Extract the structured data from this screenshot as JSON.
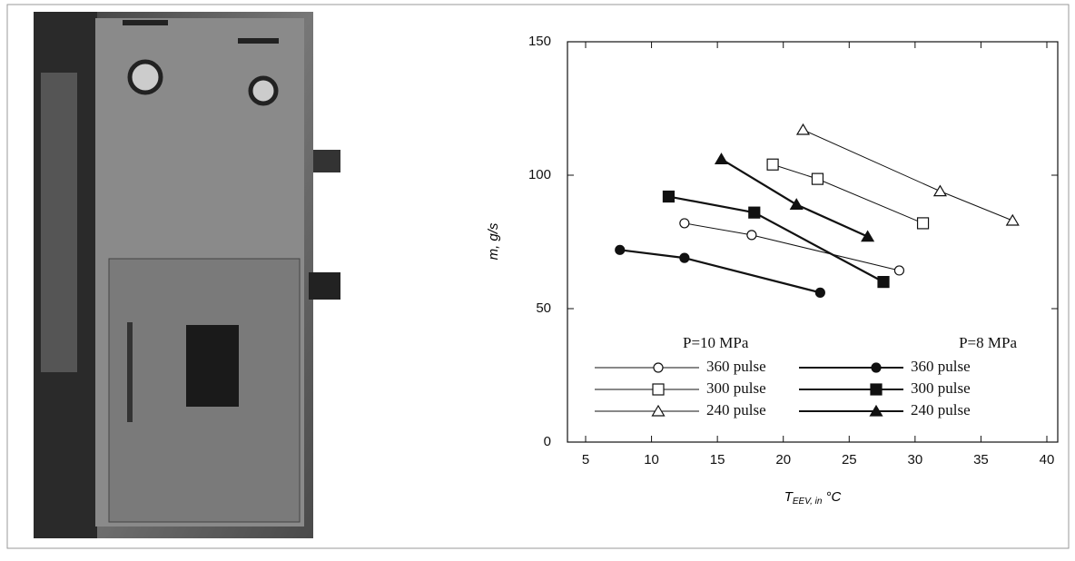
{
  "chart_data": {
    "type": "line",
    "xlabel": "T",
    "xlabel_sub": "EEV, in",
    "xlabel_unit": "°C",
    "ylabel": "m, g/s",
    "xlim": [
      5,
      40
    ],
    "xticks": [
      5,
      10,
      15,
      20,
      25,
      30,
      35,
      40
    ],
    "ylim": [
      0,
      150
    ],
    "yticks": [
      0,
      50,
      100,
      150
    ],
    "legend_titles": [
      "P=10 MPa",
      "P=8 MPa"
    ],
    "series": [
      {
        "name": "360 pulse",
        "marker": "circle",
        "filled": false,
        "x": [
          12.5,
          17.6,
          28.8
        ],
        "values": [
          82,
          77.6,
          64.3
        ]
      },
      {
        "name": "300 pulse",
        "marker": "square",
        "filled": false,
        "x": [
          19.2,
          22.6,
          30.6
        ],
        "values": [
          104,
          98.6,
          82
        ]
      },
      {
        "name": "240 pulse",
        "marker": "triangle",
        "filled": false,
        "x": [
          21.5,
          31.9,
          37.4
        ],
        "values": [
          117,
          94,
          83
        ]
      },
      {
        "name": "360 pulse",
        "marker": "circle",
        "filled": true,
        "x": [
          7.6,
          12.5,
          22.8
        ],
        "values": [
          72,
          69,
          56
        ]
      },
      {
        "name": "300 pulse",
        "marker": "square",
        "filled": true,
        "x": [
          11.3,
          17.8,
          27.6
        ],
        "values": [
          92,
          86,
          60
        ]
      },
      {
        "name": "240 pulse",
        "marker": "triangle",
        "filled": true,
        "x": [
          15.3,
          21,
          26.4
        ],
        "values": [
          106,
          89,
          77
        ]
      }
    ]
  }
}
